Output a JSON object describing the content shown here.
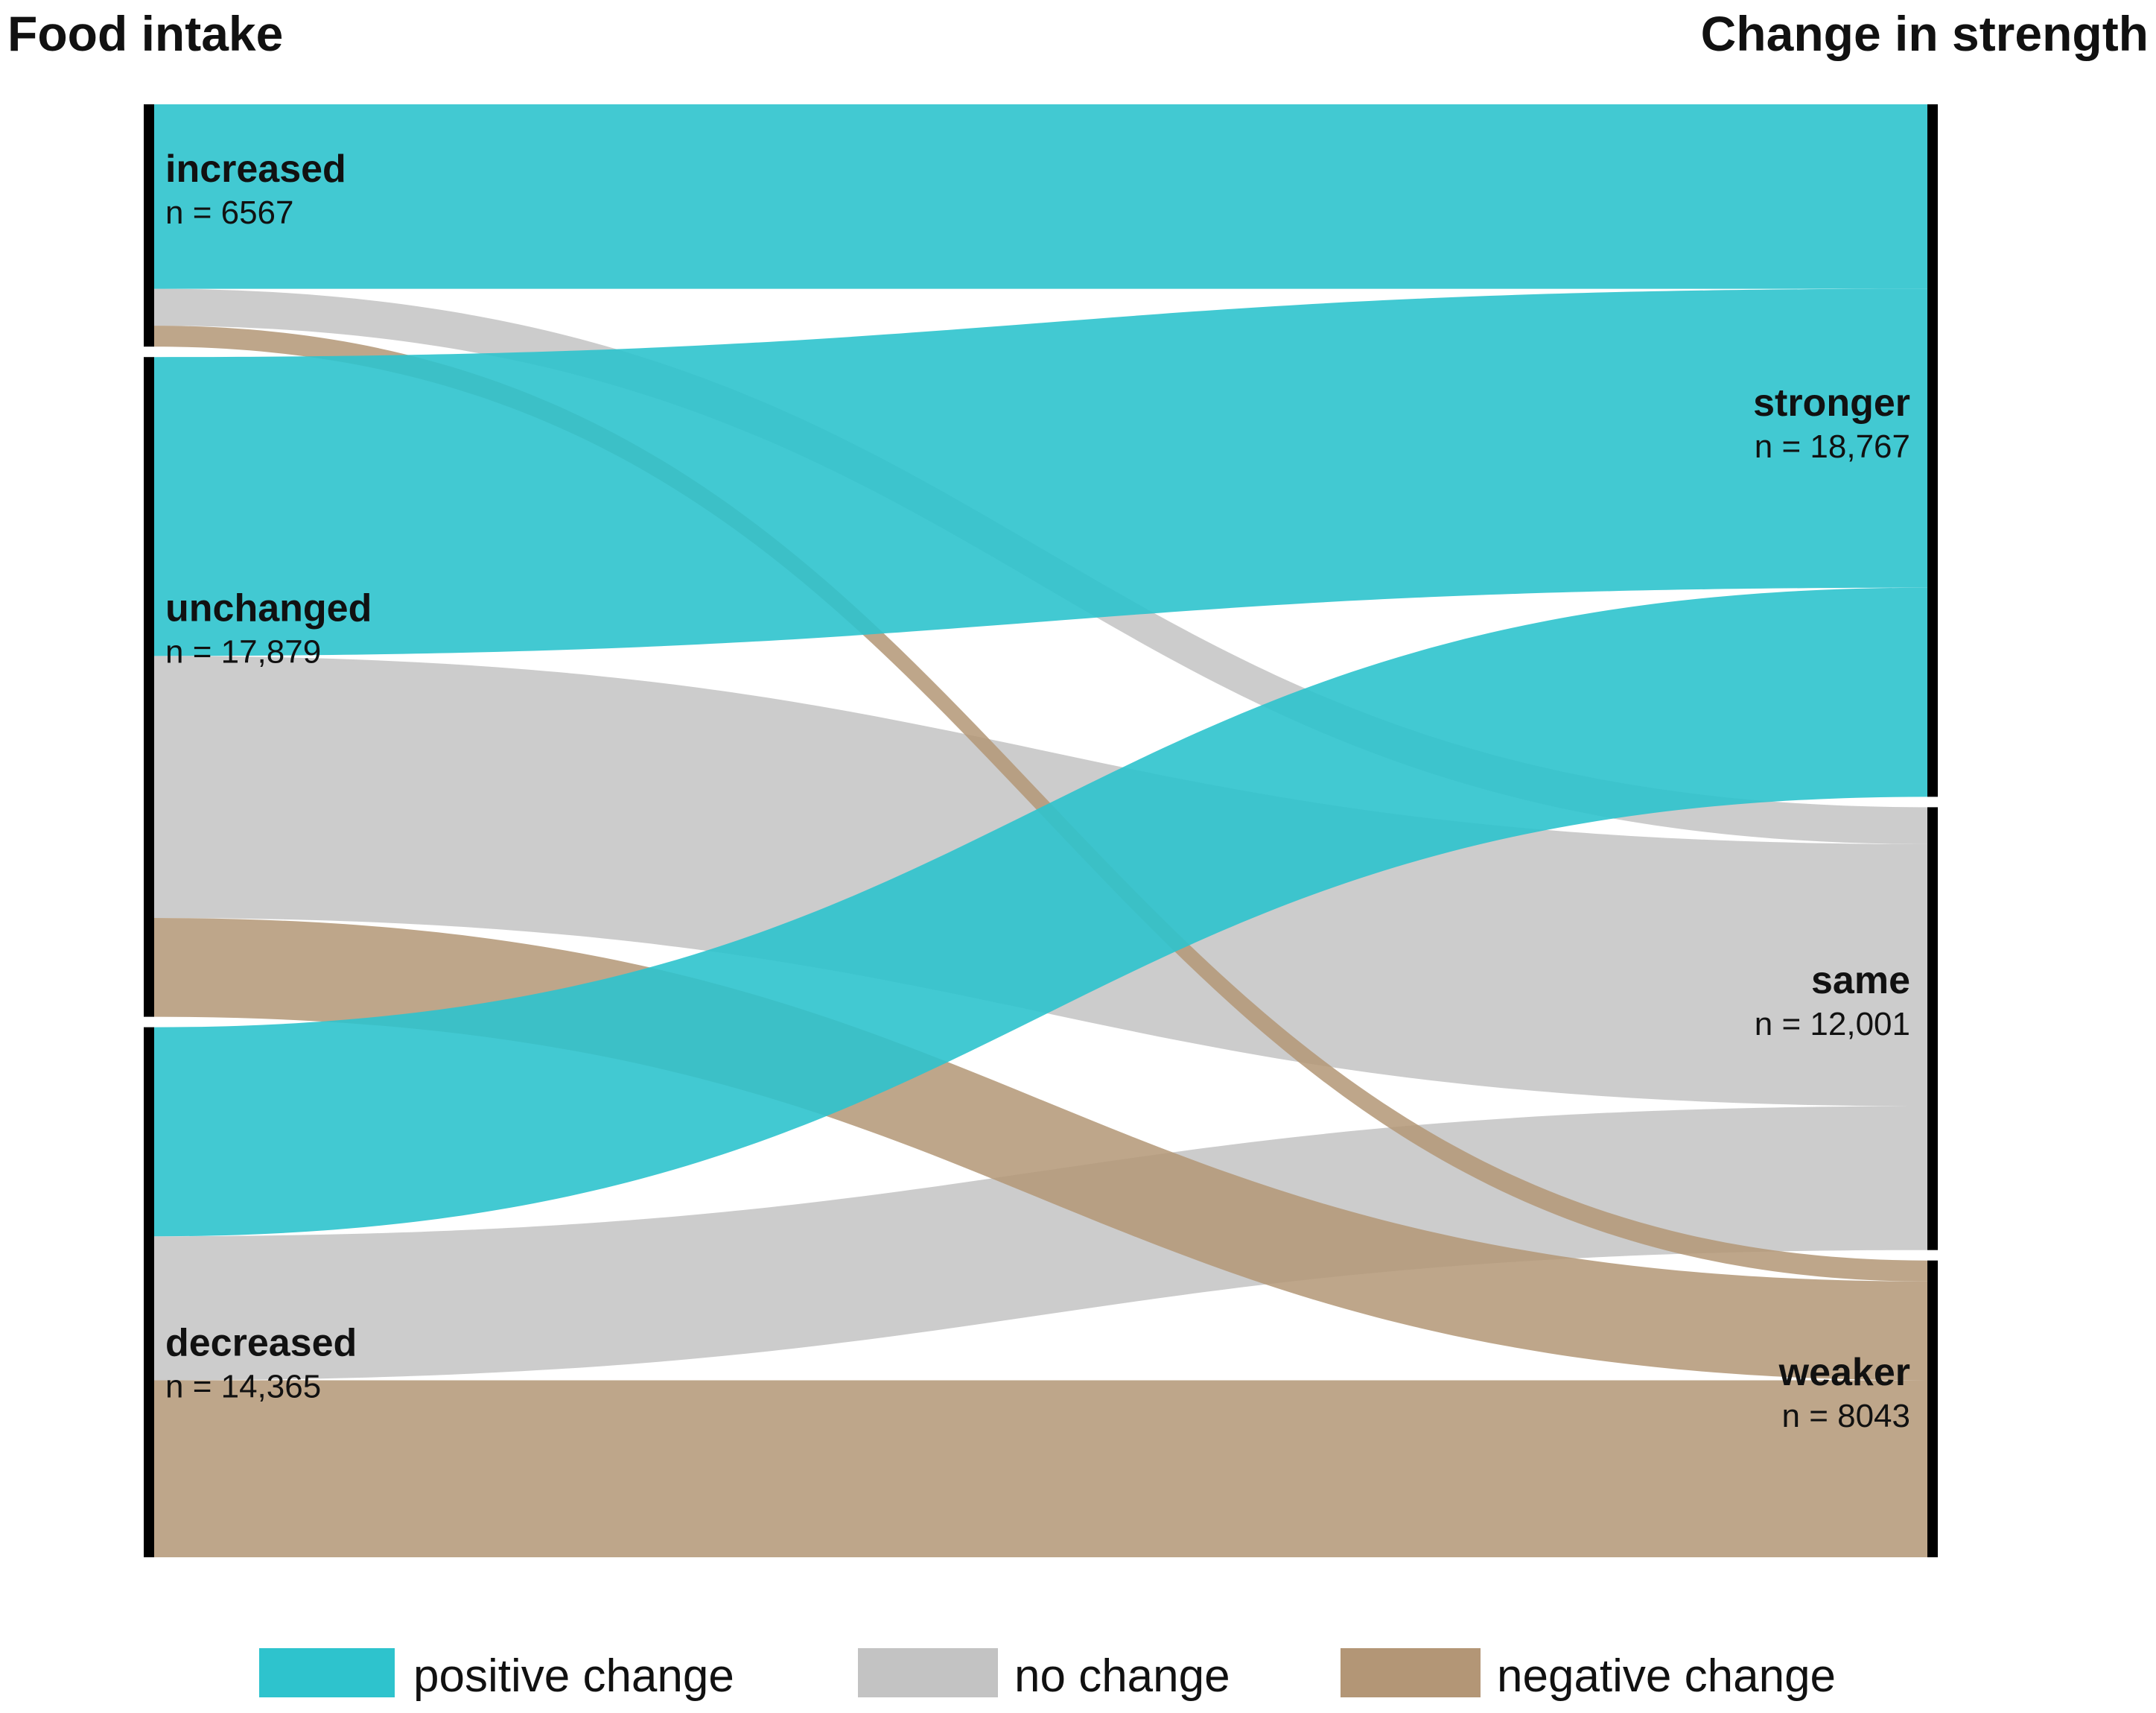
{
  "chart_data": {
    "type": "sankey",
    "title": "",
    "left_axis_title": "Food intake",
    "right_axis_title": "Change in strength",
    "left_nodes": [
      {
        "id": "increased",
        "label": "increased",
        "n_label": "n = 6567",
        "n": 6567
      },
      {
        "id": "unchanged",
        "label": "unchanged",
        "n_label": "n = 17,879",
        "n": 17879
      },
      {
        "id": "decreased",
        "label": "decreased",
        "n_label": "n = 14,365",
        "n": 14365
      }
    ],
    "right_nodes": [
      {
        "id": "stronger",
        "label": "stronger",
        "n_label": "n = 18,767",
        "n": 18767
      },
      {
        "id": "same",
        "label": "same",
        "n_label": "n = 12,001",
        "n": 12001
      },
      {
        "id": "weaker",
        "label": "weaker",
        "n_label": "n = 8043",
        "n": 8043
      }
    ],
    "flows": [
      {
        "source": "increased",
        "target": "stronger",
        "value": 5000,
        "category": "positive"
      },
      {
        "source": "increased",
        "target": "same",
        "value": 1000,
        "category": "none"
      },
      {
        "source": "increased",
        "target": "weaker",
        "value": 567,
        "category": "negative"
      },
      {
        "source": "unchanged",
        "target": "stronger",
        "value": 8100,
        "category": "positive"
      },
      {
        "source": "unchanged",
        "target": "same",
        "value": 7100,
        "category": "none"
      },
      {
        "source": "unchanged",
        "target": "weaker",
        "value": 2679,
        "category": "negative"
      },
      {
        "source": "decreased",
        "target": "stronger",
        "value": 5667,
        "category": "positive"
      },
      {
        "source": "decreased",
        "target": "same",
        "value": 3901,
        "category": "none"
      },
      {
        "source": "decreased",
        "target": "weaker",
        "value": 4797,
        "category": "negative"
      }
    ],
    "legend": [
      {
        "key": "positive",
        "label": "positive change",
        "color": "#2ec3cd"
      },
      {
        "key": "none",
        "label": "no change",
        "color": "#c3c3c3"
      },
      {
        "key": "negative",
        "label": "negative change",
        "color": "#b39676"
      }
    ],
    "legend_position": "bottom"
  }
}
